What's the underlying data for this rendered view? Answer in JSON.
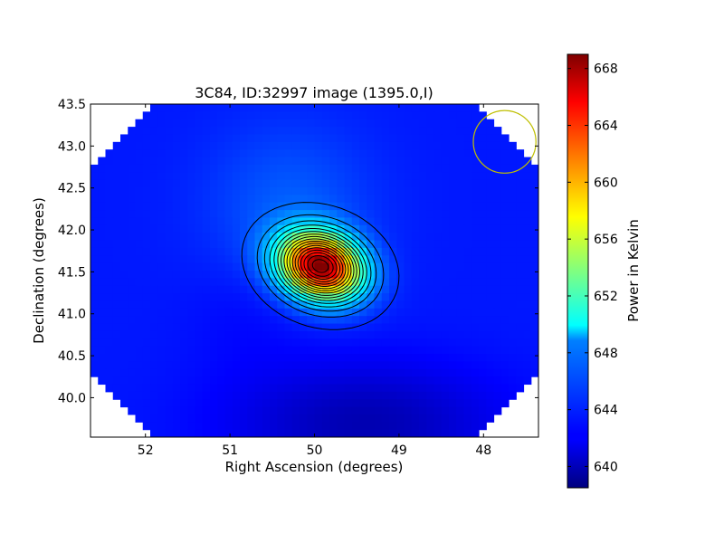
{
  "chart_data": {
    "type": "heatmap",
    "title": "3C84, ID:32997 image (1395.0,I)",
    "xlabel": "Right Ascension (degrees)",
    "ylabel": "Declination (degrees)",
    "xlim": [
      52.65,
      47.35
    ],
    "ylim": [
      39.53,
      43.5
    ],
    "x_inverted": true,
    "x_ticks": [
      52,
      51,
      50,
      49,
      48
    ],
    "y_ticks": [
      40.0,
      40.5,
      41.0,
      41.5,
      42.0,
      42.5,
      43.0,
      43.5
    ],
    "colorbar": {
      "label": "Power in Kelvin",
      "range": [
        638.5,
        669.0
      ],
      "ticks": [
        640,
        644,
        648,
        652,
        656,
        660,
        664,
        668
      ],
      "colormap": "jet"
    },
    "peak": {
      "ra": 49.93,
      "dec": 41.57,
      "value": 668.5
    },
    "baseline_level": 643.0,
    "contour_levels": [
      641.5,
      643.5,
      645,
      646.5,
      648,
      649.5,
      651,
      652.5,
      654,
      655.5,
      657,
      658.5,
      660,
      661.5,
      663,
      664.5,
      666,
      667.5
    ],
    "beam": {
      "ra": 47.75,
      "dec": 43.05,
      "radius_deg": 0.37,
      "color": "#bfbf00"
    },
    "grid": false,
    "legend": "none"
  },
  "colors": {
    "background": "#ffffff",
    "contour": "#000000",
    "beam": "#bfbf00"
  }
}
